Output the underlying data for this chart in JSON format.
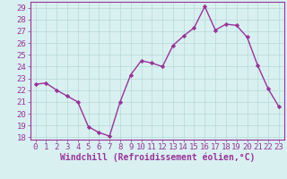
{
  "x": [
    0,
    1,
    2,
    3,
    4,
    5,
    6,
    7,
    8,
    9,
    10,
    11,
    12,
    13,
    14,
    15,
    16,
    17,
    18,
    19,
    20,
    21,
    22,
    23
  ],
  "y": [
    22.5,
    22.6,
    22.0,
    21.5,
    21.0,
    18.9,
    18.4,
    18.1,
    21.0,
    23.3,
    24.5,
    24.3,
    24.0,
    25.8,
    26.6,
    27.3,
    29.1,
    27.1,
    27.6,
    27.5,
    26.5,
    24.1,
    22.1,
    20.6
  ],
  "line_color": "#993399",
  "marker": "D",
  "marker_size": 2.2,
  "xlabel": "Windchill (Refroidissement éolien,°C)",
  "xlabel_color": "#993399",
  "ylim_min": 17.8,
  "ylim_max": 29.5,
  "yticks": [
    18,
    19,
    20,
    21,
    22,
    23,
    24,
    25,
    26,
    27,
    28,
    29
  ],
  "xlim_min": -0.5,
  "xlim_max": 23.5,
  "xticks": [
    0,
    1,
    2,
    3,
    4,
    5,
    6,
    7,
    8,
    9,
    10,
    11,
    12,
    13,
    14,
    15,
    16,
    17,
    18,
    19,
    20,
    21,
    22,
    23
  ],
  "bg_color": "#d8f0f0",
  "grid_color": "#b8d8d8",
  "spine_color": "#993399",
  "tick_label_color": "#993399",
  "line_width": 1.0,
  "font_size_ticks": 6.5,
  "font_size_xlabel": 7.0
}
